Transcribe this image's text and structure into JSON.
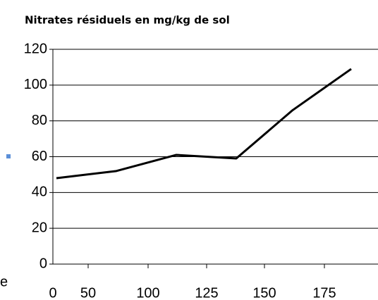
{
  "chart_data": {
    "type": "line",
    "title": "Nitrates résiduels en mg/kg de sol",
    "categories": [
      "0",
      "50",
      "100",
      "125",
      "150",
      "175"
    ],
    "series": [
      {
        "name": null,
        "color": "#000000",
        "values": [
          48,
          52,
          61,
          59,
          86,
          109
        ]
      }
    ],
    "ylim": [
      0,
      120
    ],
    "yticks": [
      0,
      20,
      40,
      60,
      80,
      100,
      120
    ],
    "grid": true,
    "annotations": [
      "e"
    ]
  }
}
